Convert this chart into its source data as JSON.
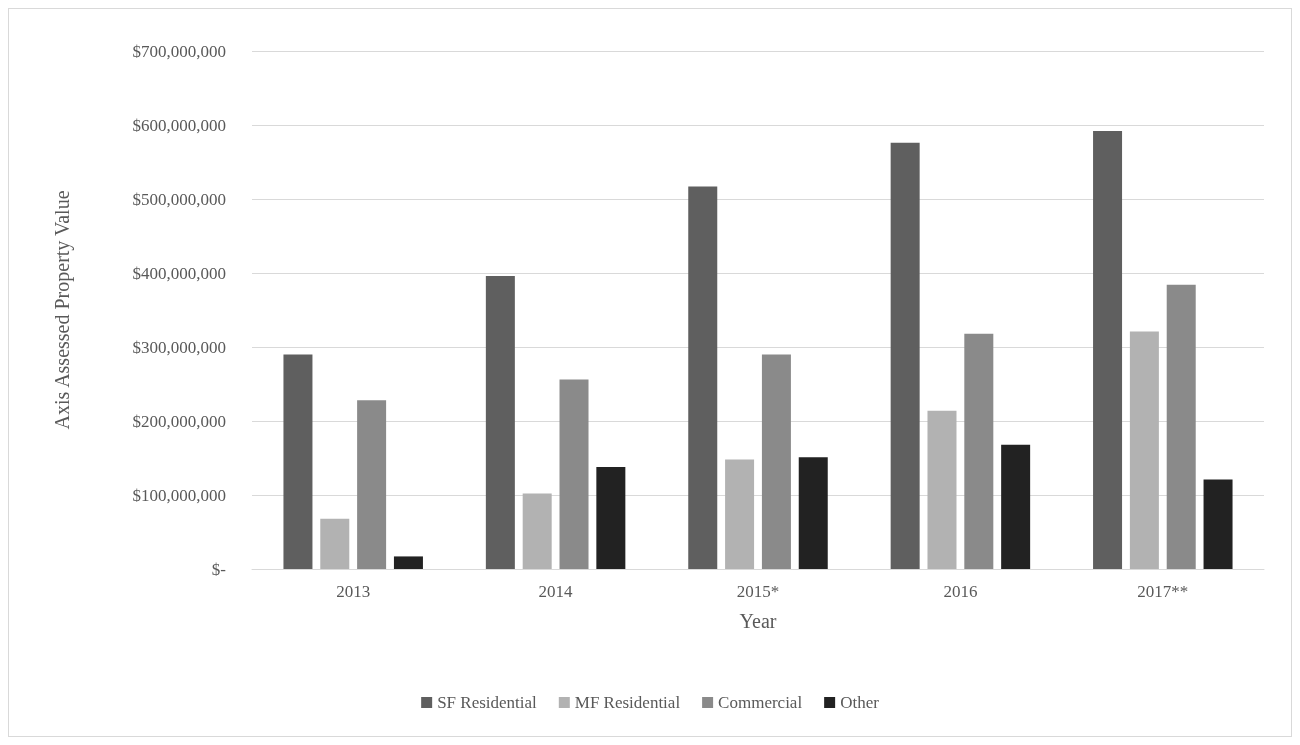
{
  "chart_data": {
    "type": "bar",
    "xlabel": "Year",
    "ylabel": "Axis Assessed Property Value",
    "categories": [
      "2013",
      "2014",
      "2015*",
      "2016",
      "2017**"
    ],
    "series": [
      {
        "name": "SF Residential",
        "color": "#5f5f5f",
        "values": [
          290000000,
          396000000,
          517000000,
          576000000,
          592000000
        ]
      },
      {
        "name": "MF Residential",
        "color": "#b2b2b2",
        "values": [
          68000000,
          102000000,
          148000000,
          214000000,
          321000000
        ]
      },
      {
        "name": "Commercial",
        "color": "#8a8a8a",
        "values": [
          228000000,
          256000000,
          290000000,
          318000000,
          384000000
        ]
      },
      {
        "name": "Other",
        "color": "#222222",
        "values": [
          17000000,
          138000000,
          151000000,
          168000000,
          121000000
        ]
      }
    ],
    "ylim": [
      0,
      700000000
    ],
    "yticks": [
      {
        "value": 0,
        "label": "$-"
      },
      {
        "value": 100000000,
        "label": "$100,000,000"
      },
      {
        "value": 200000000,
        "label": "$200,000,000"
      },
      {
        "value": 300000000,
        "label": "$300,000,000"
      },
      {
        "value": 400000000,
        "label": "$400,000,000"
      },
      {
        "value": 500000000,
        "label": "$500,000,000"
      },
      {
        "value": 600000000,
        "label": "$600,000,000"
      },
      {
        "value": 700000000,
        "label": "$700,000,000"
      }
    ],
    "grid": "y",
    "legend": "bottom"
  }
}
